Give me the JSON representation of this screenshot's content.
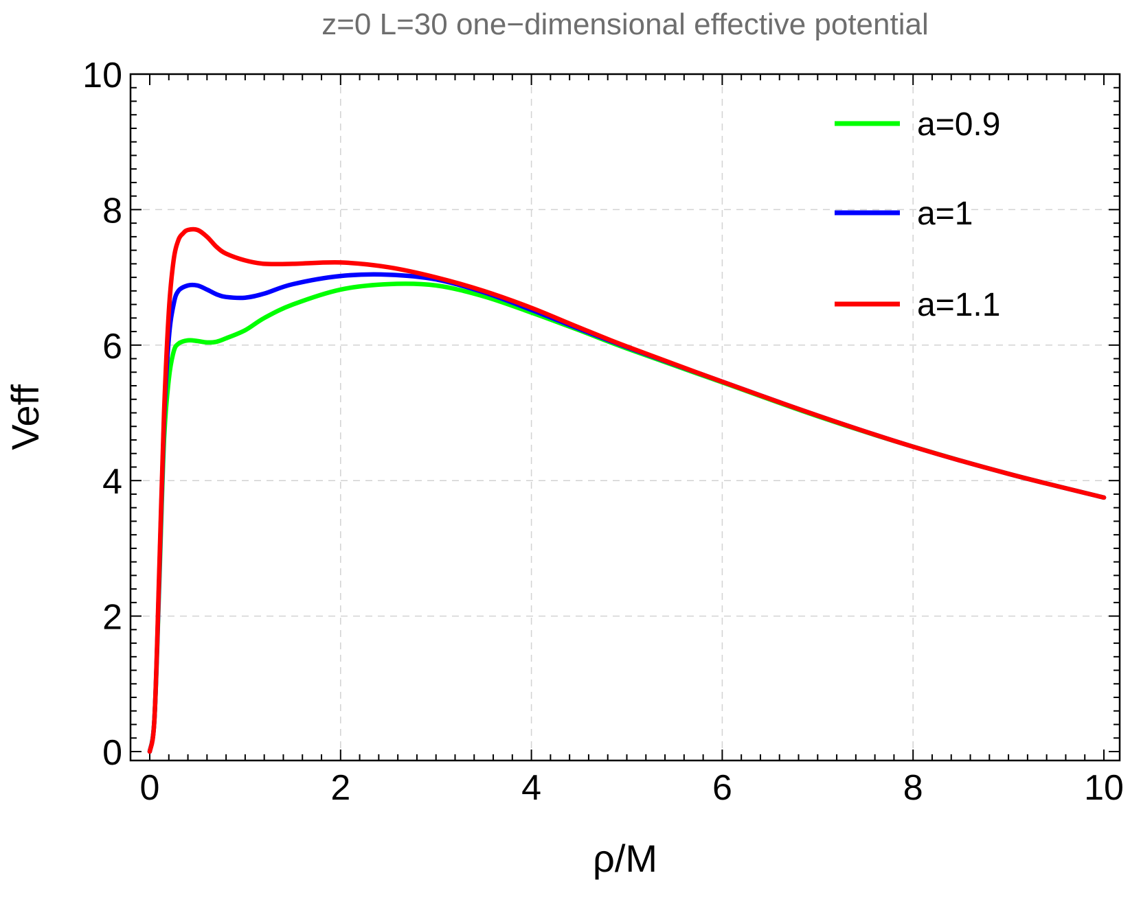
{
  "chart_data": {
    "type": "line",
    "title": "z=0 L=30 one−dimensional effective potential",
    "xlabel": "ρ/M",
    "ylabel": "Veff",
    "xlim": [
      0,
      10
    ],
    "ylim": [
      0,
      10
    ],
    "grid": true,
    "legend_position": "top-right",
    "x_ticks": [
      "0",
      "2",
      "4",
      "6",
      "8",
      "10"
    ],
    "y_ticks": [
      "0",
      "2",
      "4",
      "6",
      "8",
      "10"
    ],
    "series": [
      {
        "name": "a=0.9",
        "color": "#00ff00",
        "x": [
          0,
          0.05,
          0.1,
          0.15,
          0.2,
          0.25,
          0.3,
          0.4,
          0.5,
          0.6,
          0.7,
          0.8,
          1.0,
          1.2,
          1.5,
          2.0,
          2.5,
          3.0,
          3.5,
          4.0,
          4.5,
          5.0,
          6.0,
          7.0,
          8.0,
          9.0,
          10.0
        ],
        "values": [
          0,
          0.5,
          2.5,
          4.6,
          5.5,
          5.9,
          6.02,
          6.07,
          6.06,
          6.04,
          6.05,
          6.1,
          6.22,
          6.4,
          6.6,
          6.82,
          6.9,
          6.88,
          6.72,
          6.48,
          6.22,
          5.95,
          5.45,
          4.95,
          4.5,
          4.1,
          3.75
        ]
      },
      {
        "name": "a=1",
        "color": "#0000ff",
        "x": [
          0,
          0.05,
          0.1,
          0.15,
          0.2,
          0.25,
          0.3,
          0.4,
          0.5,
          0.6,
          0.7,
          0.8,
          1.0,
          1.2,
          1.5,
          2.0,
          2.5,
          3.0,
          3.5,
          4.0,
          4.5,
          5.0,
          6.0,
          7.0,
          8.0,
          9.0,
          10.0
        ],
        "values": [
          0,
          0.5,
          2.6,
          4.9,
          6.1,
          6.6,
          6.8,
          6.88,
          6.88,
          6.82,
          6.75,
          6.71,
          6.7,
          6.76,
          6.9,
          7.02,
          7.04,
          6.97,
          6.78,
          6.52,
          6.24,
          5.97,
          5.46,
          4.96,
          4.5,
          4.1,
          3.75
        ]
      },
      {
        "name": "a=1.1",
        "color": "#ff0000",
        "x": [
          0,
          0.05,
          0.1,
          0.15,
          0.2,
          0.25,
          0.3,
          0.35,
          0.4,
          0.5,
          0.6,
          0.7,
          0.8,
          1.0,
          1.2,
          1.5,
          2.0,
          2.5,
          3.0,
          3.5,
          4.0,
          4.5,
          5.0,
          6.0,
          7.0,
          8.0,
          9.0,
          10.0
        ],
        "values": [
          0,
          0.5,
          2.7,
          5.0,
          6.5,
          7.25,
          7.55,
          7.65,
          7.7,
          7.7,
          7.6,
          7.45,
          7.35,
          7.25,
          7.2,
          7.2,
          7.22,
          7.15,
          7.0,
          6.8,
          6.55,
          6.26,
          5.98,
          5.46,
          4.96,
          4.5,
          4.1,
          3.75
        ]
      }
    ]
  }
}
